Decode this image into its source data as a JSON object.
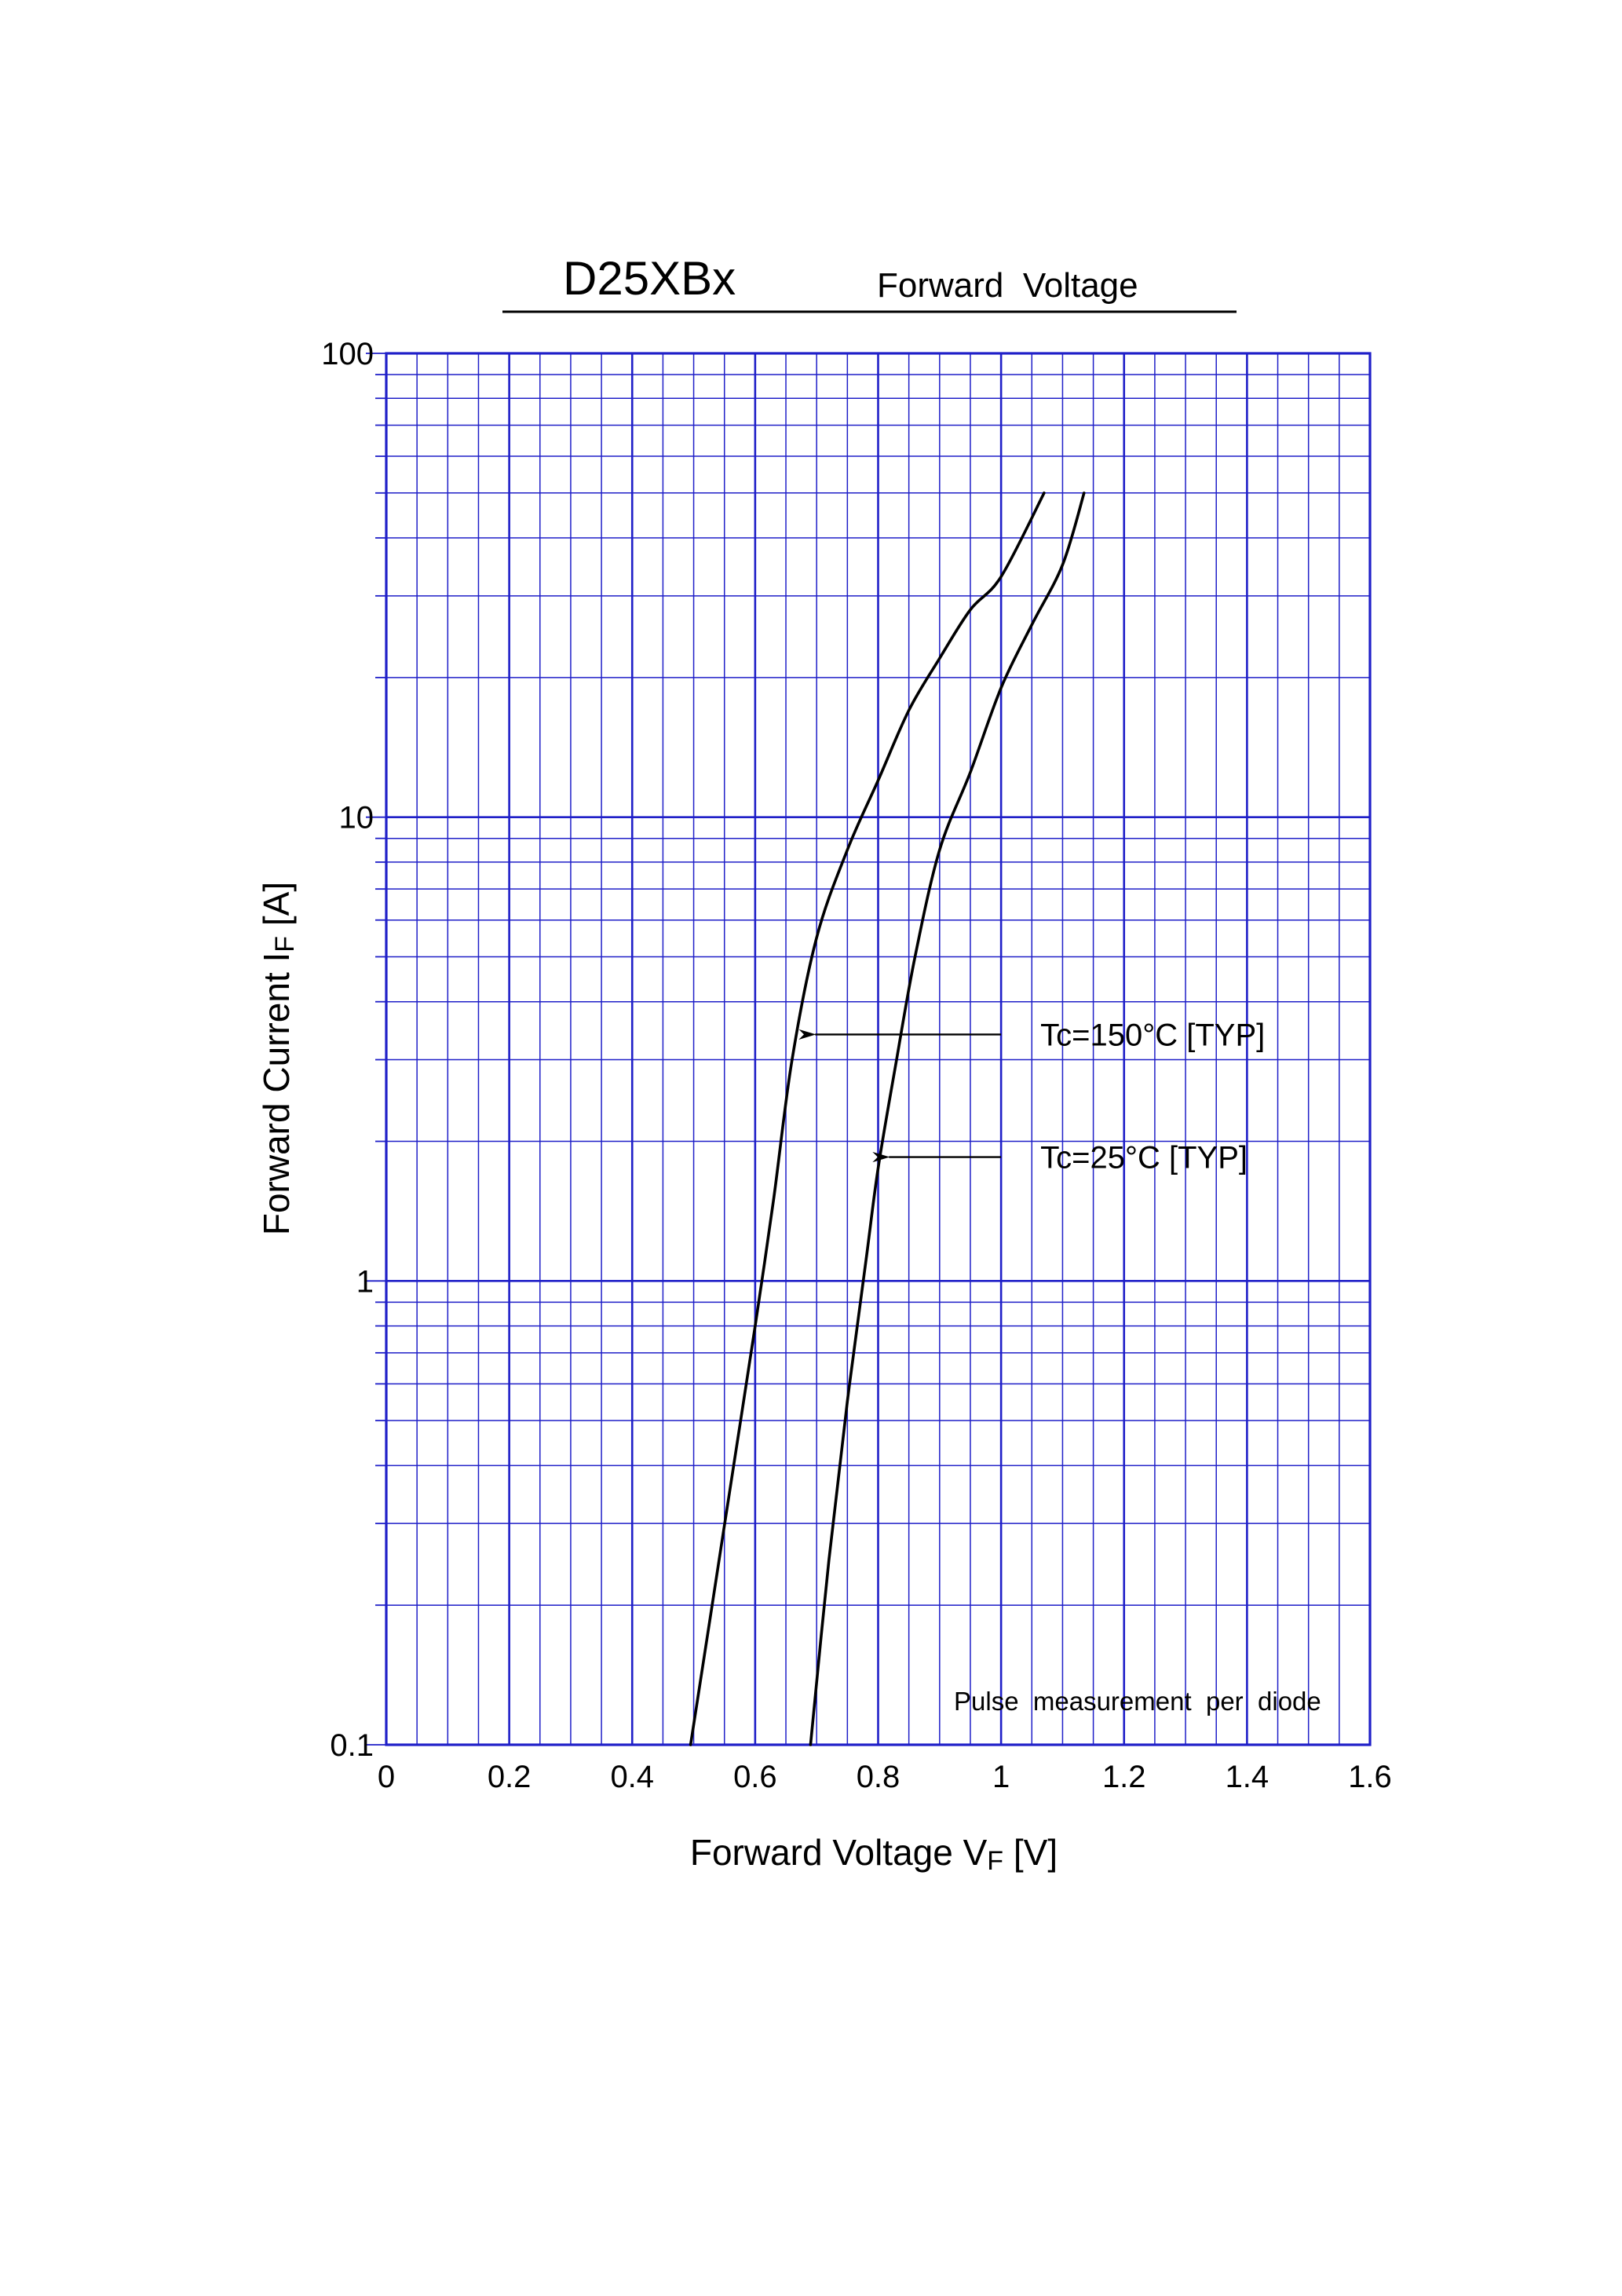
{
  "header": {
    "model": "D25XBx",
    "title": "Forward  Voltage"
  },
  "colors": {
    "grid": "#1f1fc8",
    "curve": "#000000",
    "text": "#000000",
    "background": "#ffffff"
  },
  "chart_data": {
    "type": "line",
    "title": "D25XBx   Forward  Voltage",
    "xlabel": "Forward Voltage  V",
    "xlabel_sub": "F",
    "xlabel_unit": "[V]",
    "ylabel": "Forward Current  I",
    "ylabel_sub": "F",
    "ylabel_unit": "[A]",
    "xlim": [
      0,
      1.6
    ],
    "ylim": [
      0.1,
      100
    ],
    "yscale": "log",
    "grid": true,
    "x_minor_step": 0.05,
    "x_major_step": 0.2,
    "x_ticks": [
      "0",
      "0.2",
      "0.4",
      "0.6",
      "0.8",
      "1",
      "1.2",
      "1.4",
      "1.6"
    ],
    "y_ticks": [
      "0.1",
      "1",
      "10",
      "100"
    ],
    "series": [
      {
        "name": "Tc=150°C [TYP]",
        "points": [
          [
            0.495,
            0.1
          ],
          [
            0.53,
            0.2
          ],
          [
            0.565,
            0.4
          ],
          [
            0.6,
            0.8
          ],
          [
            0.63,
            1.5
          ],
          [
            0.66,
            3.0
          ],
          [
            0.7,
            5.5
          ],
          [
            0.75,
            8.5
          ],
          [
            0.8,
            12
          ],
          [
            0.85,
            17
          ],
          [
            0.9,
            22
          ],
          [
            0.95,
            28
          ],
          [
            1.0,
            33
          ],
          [
            1.07,
            50
          ]
        ]
      },
      {
        "name": "Tc=25°C [TYP]",
        "points": [
          [
            0.69,
            0.1
          ],
          [
            0.72,
            0.25
          ],
          [
            0.75,
            0.55
          ],
          [
            0.78,
            1.1
          ],
          [
            0.8,
            1.75
          ],
          [
            0.83,
            3.0
          ],
          [
            0.86,
            5.0
          ],
          [
            0.9,
            8.5
          ],
          [
            0.95,
            12.5
          ],
          [
            1.0,
            19
          ],
          [
            1.05,
            26
          ],
          [
            1.1,
            35
          ],
          [
            1.135,
            50
          ]
        ]
      }
    ],
    "annotations": [
      {
        "text_main": "Tc=150°C [TYP]",
        "arrow_to": [
          0.695,
          3.4
        ]
      },
      {
        "text_main": "Tc=25°C [TYP]",
        "arrow_to": [
          0.815,
          1.85
        ]
      }
    ],
    "note": "Pulse  measurement  per  diode"
  }
}
